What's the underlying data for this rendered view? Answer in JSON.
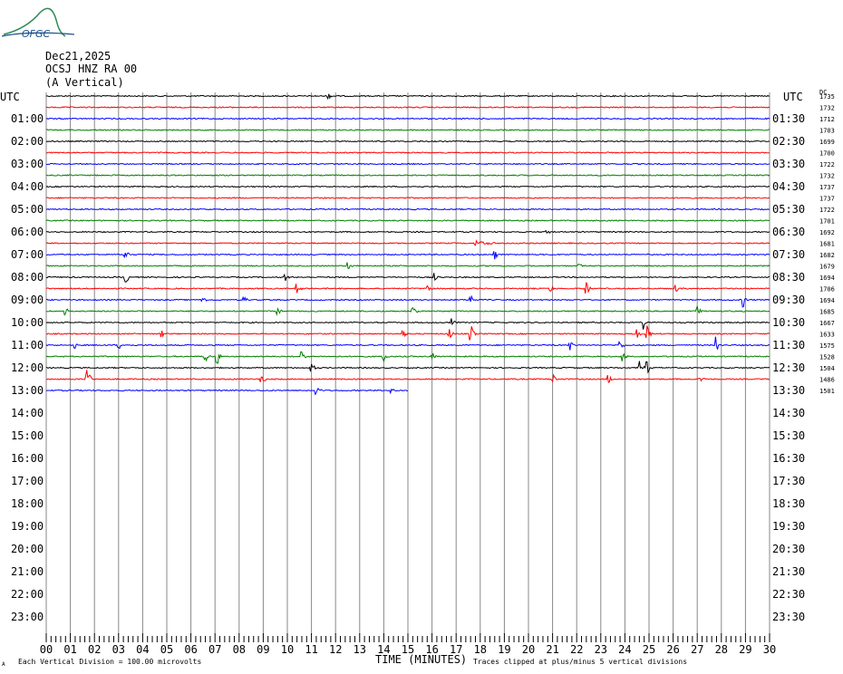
{
  "header": {
    "logo_text": "OFGC",
    "date": "Dec21,2025",
    "station": "OCSJ HNZ RA 00",
    "component": "(A Vertical)"
  },
  "left_axis_label": "UTC",
  "right_axis_label": "UTC",
  "right_axis_unit": "DC",
  "footer": {
    "scale_note": "Each Vertical Division =  100.00 microvolts",
    "xlabel": "TIME (MINUTES)",
    "clip_note": "Traces clipped at plus/minus 5 vertical divisions",
    "corner_mark": "A"
  },
  "chart_data": {
    "type": "line",
    "title": "",
    "xlabel": "TIME (MINUTES)",
    "xlim": [
      0,
      30
    ],
    "x_ticks": [
      "00",
      "01",
      "02",
      "03",
      "04",
      "05",
      "06",
      "07",
      "08",
      "09",
      "10",
      "11",
      "12",
      "13",
      "14",
      "15",
      "16",
      "17",
      "18",
      "19",
      "20",
      "21",
      "22",
      "23",
      "24",
      "25",
      "26",
      "27",
      "28",
      "29",
      "30"
    ],
    "left_labels": [
      "01:00",
      "02:00",
      "03:00",
      "04:00",
      "05:00",
      "06:00",
      "07:00",
      "08:00",
      "09:00",
      "10:00",
      "11:00",
      "12:00",
      "13:00",
      "14:00",
      "15:00",
      "16:00",
      "17:00",
      "18:00",
      "19:00",
      "20:00",
      "21:00",
      "22:00",
      "23:00"
    ],
    "right_labels": [
      "01:30",
      "02:30",
      "03:30",
      "04:30",
      "05:30",
      "06:30",
      "07:30",
      "08:30",
      "09:30",
      "10:30",
      "11:30",
      "12:30",
      "13:30",
      "14:30",
      "15:30",
      "16:30",
      "17:30",
      "18:30",
      "19:30",
      "20:30",
      "21:30",
      "22:30",
      "23:30"
    ],
    "trace_dc_offsets": [
      1735,
      1732,
      1712,
      1703,
      1699,
      1700,
      1722,
      1732,
      1737,
      1737,
      1722,
      1701,
      1692,
      1681,
      1682,
      1679,
      1694,
      1706,
      1694,
      1685,
      1667,
      1633,
      1575,
      1528,
      1504,
      1486,
      1501
    ],
    "trace_colors": [
      "#000000",
      "#ff0000",
      "#0000ff",
      "#008000"
    ],
    "trace_count": 27,
    "last_trace_end_minute": 15,
    "grid": true,
    "events": [
      {
        "trace": 0,
        "minute": 11.7,
        "amp": 4
      },
      {
        "trace": 13,
        "minute": 17.8,
        "amp": 3,
        "wide": 1.2
      },
      {
        "trace": 12,
        "minute": 20.7,
        "amp": 5
      },
      {
        "trace": 14,
        "minute": 3.3,
        "amp": 6
      },
      {
        "trace": 14,
        "minute": 18.6,
        "amp": 8
      },
      {
        "trace": 15,
        "minute": 12.5,
        "amp": 5
      },
      {
        "trace": 15,
        "minute": 22.1,
        "amp": 4
      },
      {
        "trace": 16,
        "minute": 3.3,
        "amp": 9
      },
      {
        "trace": 16,
        "minute": 9.9,
        "amp": 6
      },
      {
        "trace": 16,
        "minute": 16.1,
        "amp": 5
      },
      {
        "trace": 17,
        "minute": 10.4,
        "amp": 6
      },
      {
        "trace": 17,
        "minute": 15.8,
        "amp": 7
      },
      {
        "trace": 17,
        "minute": 20.9,
        "amp": 5
      },
      {
        "trace": 17,
        "minute": 22.4,
        "amp": 12
      },
      {
        "trace": 17,
        "minute": 26.1,
        "amp": 7
      },
      {
        "trace": 18,
        "minute": 6.5,
        "amp": 5
      },
      {
        "trace": 18,
        "minute": 8.2,
        "amp": 7
      },
      {
        "trace": 18,
        "minute": 17.6,
        "amp": 7
      },
      {
        "trace": 18,
        "minute": 28.9,
        "amp": 9
      },
      {
        "trace": 19,
        "minute": 0.8,
        "amp": 5
      },
      {
        "trace": 19,
        "minute": 9.6,
        "amp": 8
      },
      {
        "trace": 19,
        "minute": 15.2,
        "amp": 5
      },
      {
        "trace": 19,
        "minute": 27.0,
        "amp": 6
      },
      {
        "trace": 20,
        "minute": 16.8,
        "amp": 12
      },
      {
        "trace": 20,
        "minute": 24.8,
        "amp": 9
      },
      {
        "trace": 21,
        "minute": 4.8,
        "amp": 6
      },
      {
        "trace": 21,
        "minute": 14.8,
        "amp": 6
      },
      {
        "trace": 21,
        "minute": 16.7,
        "amp": 9
      },
      {
        "trace": 21,
        "minute": 17.6,
        "amp": 12
      },
      {
        "trace": 21,
        "minute": 24.5,
        "amp": 6
      },
      {
        "trace": 21,
        "minute": 24.9,
        "amp": 12
      },
      {
        "trace": 22,
        "minute": 1.2,
        "amp": 5
      },
      {
        "trace": 22,
        "minute": 3.0,
        "amp": 6
      },
      {
        "trace": 22,
        "minute": 21.7,
        "amp": 7
      },
      {
        "trace": 22,
        "minute": 23.8,
        "amp": 7
      },
      {
        "trace": 22,
        "minute": 27.8,
        "amp": 10
      },
      {
        "trace": 23,
        "minute": 6.6,
        "amp": 7
      },
      {
        "trace": 23,
        "minute": 7.1,
        "amp": 9
      },
      {
        "trace": 23,
        "minute": 10.6,
        "amp": 7
      },
      {
        "trace": 23,
        "minute": 14.0,
        "amp": 6
      },
      {
        "trace": 23,
        "minute": 16.0,
        "amp": 6
      },
      {
        "trace": 23,
        "minute": 23.9,
        "amp": 7
      },
      {
        "trace": 24,
        "minute": 11.0,
        "amp": 7
      },
      {
        "trace": 24,
        "minute": 24.6,
        "amp": 8
      },
      {
        "trace": 24,
        "minute": 24.9,
        "amp": 9
      },
      {
        "trace": 25,
        "minute": 1.7,
        "amp": 14
      },
      {
        "trace": 25,
        "minute": 8.9,
        "amp": 10
      },
      {
        "trace": 25,
        "minute": 21.0,
        "amp": 7
      },
      {
        "trace": 25,
        "minute": 23.3,
        "amp": 7
      },
      {
        "trace": 25,
        "minute": 27.1,
        "amp": 7
      },
      {
        "trace": 26,
        "minute": 11.2,
        "amp": 6
      },
      {
        "trace": 26,
        "minute": 14.3,
        "amp": 5
      }
    ]
  }
}
